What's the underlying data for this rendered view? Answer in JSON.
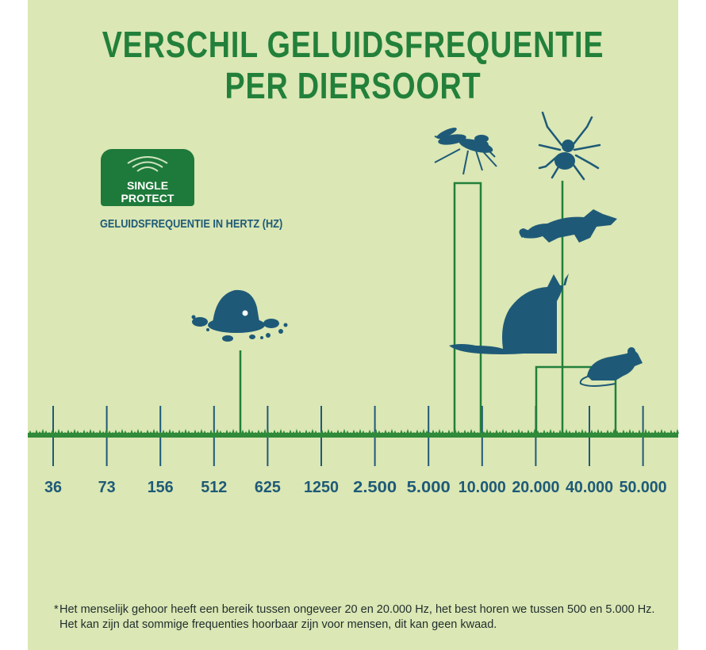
{
  "title": {
    "line1": "VERSCHIL GELUIDSFREQUENTIE",
    "line2": "PER DIERSOORT"
  },
  "badge": {
    "line1": "SINGLE",
    "line2": "PROTECT",
    "icon": "sound-waves-icon"
  },
  "subtitle": "GELUIDSFREQUENTIE IN HERTZ (HZ)",
  "colors": {
    "background": "#dbe7b4",
    "title": "#22803a",
    "axis_labels": "#1e5a78",
    "animals": "#1e5a78",
    "connector_lines": "#22803a",
    "ground": "#2f8a3a"
  },
  "axis": {
    "ticks": [
      "36",
      "73",
      "156",
      "512",
      "625",
      "1250",
      "2.500",
      "5.000",
      "10.000",
      "20.000",
      "40.000",
      "50.000"
    ]
  },
  "animals": [
    {
      "name": "mol",
      "icon": "mole-icon",
      "position_between": [
        "512",
        "625"
      ]
    },
    {
      "name": "mug",
      "icon": "mosquito-icon",
      "range": [
        "5.000",
        "10.000"
      ]
    },
    {
      "name": "spin",
      "icon": "spider-icon",
      "position_between": [
        "20.000",
        "40.000"
      ]
    },
    {
      "name": "marter",
      "icon": "marten-icon",
      "position_between": [
        "20.000",
        "40.000"
      ]
    },
    {
      "name": "kat",
      "icon": "cat-icon",
      "position_between": [
        "20.000",
        "40.000"
      ]
    },
    {
      "name": "muis",
      "icon": "mouse-icon",
      "range": [
        "20.000",
        "40.000"
      ]
    }
  ],
  "footnote": {
    "star": "*",
    "line1": "Het menselijk gehoor heeft een bereik tussen ongeveer 20 en 20.000 Hz, het best horen we tussen 500 en 5.000 Hz.",
    "line2": "Het kan zijn dat sommige frequenties hoorbaar zijn voor mensen, dit kan geen kwaad."
  }
}
